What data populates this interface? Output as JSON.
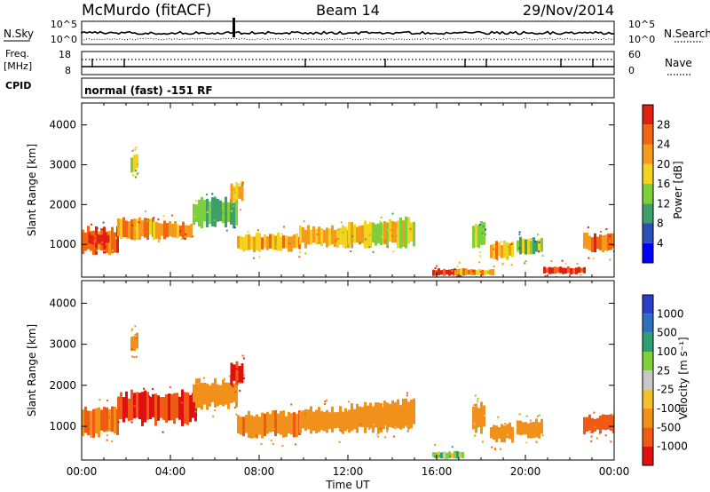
{
  "header": {
    "station": "McMurdo (fitACF)",
    "beam": "Beam 14",
    "date": "29/Nov/2014"
  },
  "noise_panel": {
    "left_label": "N.Sky",
    "right_label": "N.Search",
    "left_ticks": [
      "10^5",
      "10^0"
    ],
    "right_ticks": [
      "10^5",
      "10^0"
    ]
  },
  "freq_panel": {
    "left_label_line1": "Freq.",
    "left_label_line2": "[MHz]",
    "right_label": "Nave",
    "left_ticks": [
      "18",
      "8"
    ],
    "right_ticks": [
      "60",
      "0"
    ]
  },
  "cpid": {
    "label": "CPID",
    "mode_text": "normal (fast) -151 RF"
  },
  "axes": {
    "ylabel": "Slant Range [km]",
    "xlabel": "Time UT",
    "y_ticks": [
      "1000",
      "2000",
      "3000",
      "4000"
    ],
    "x_ticks": [
      "00:00",
      "04:00",
      "08:00",
      "12:00",
      "16:00",
      "20:00",
      "00:00"
    ]
  },
  "power_colorbar": {
    "label": "Power [dB]",
    "ticks": [
      "4",
      "8",
      "12",
      "16",
      "20",
      "24",
      "28"
    ],
    "colors": [
      "#0000ff",
      "#2a4fb8",
      "#3f9f6a",
      "#7ecf3c",
      "#f2d31e",
      "#f59a1a",
      "#f26514",
      "#e02010"
    ]
  },
  "velocity_colorbar": {
    "label": "Velocity [m s⁻¹]",
    "ticks": [
      "1000",
      "500",
      "100",
      "25",
      "-25",
      "-100",
      "-500",
      "-1000"
    ],
    "colors": [
      "#2a3fc8",
      "#2f6fbf",
      "#2e9f72",
      "#7fd03a",
      "#c8c8c8",
      "#f2c12e",
      "#f2901c",
      "#ef5a14",
      "#e01010"
    ]
  },
  "chart_data": [
    {
      "type": "heatmap",
      "title": "Power",
      "xlabel": "Time UT",
      "ylabel": "Slant Range [km]",
      "xlim": [
        0,
        24
      ],
      "ylim": [
        180,
        4550
      ],
      "colorbar": "Power [dB]",
      "clim": [
        0,
        30
      ],
      "grid": false,
      "regions": [
        {
          "t": [
            0.0,
            1.6
          ],
          "r": [
            700,
            1500
          ],
          "value": 24
        },
        {
          "t": [
            0.3,
            1.2
          ],
          "r": [
            1000,
            1300
          ],
          "value": 28
        },
        {
          "t": [
            1.6,
            3.2
          ],
          "r": [
            1100,
            1700
          ],
          "value": 20
        },
        {
          "t": [
            2.2,
            2.5
          ],
          "r": [
            2800,
            3300
          ],
          "value": 14
        },
        {
          "t": [
            3.2,
            5.0
          ],
          "r": [
            1100,
            1600
          ],
          "value": 22
        },
        {
          "t": [
            5.0,
            7.0
          ],
          "r": [
            1400,
            2200
          ],
          "value": 12
        },
        {
          "t": [
            6.7,
            7.3
          ],
          "r": [
            2000,
            2600
          ],
          "value": 18
        },
        {
          "t": [
            7.0,
            9.8
          ],
          "r": [
            800,
            1300
          ],
          "value": 20
        },
        {
          "t": [
            9.8,
            12.0
          ],
          "r": [
            900,
            1500
          ],
          "value": 18
        },
        {
          "t": [
            12.0,
            13.6
          ],
          "r": [
            900,
            1600
          ],
          "value": 16
        },
        {
          "t": [
            13.6,
            15.0
          ],
          "r": [
            900,
            1700
          ],
          "value": 18
        },
        {
          "t": [
            15.8,
            17.2
          ],
          "r": [
            200,
            400
          ],
          "value": 28
        },
        {
          "t": [
            16.8,
            18.6
          ],
          "r": [
            200,
            400
          ],
          "value": 20
        },
        {
          "t": [
            17.6,
            18.2
          ],
          "r": [
            800,
            1600
          ],
          "value": 14
        },
        {
          "t": [
            18.4,
            19.4
          ],
          "r": [
            600,
            1100
          ],
          "value": 20
        },
        {
          "t": [
            19.6,
            20.8
          ],
          "r": [
            700,
            1200
          ],
          "value": 12
        },
        {
          "t": [
            20.8,
            22.6
          ],
          "r": [
            250,
            450
          ],
          "value": 26
        },
        {
          "t": [
            22.6,
            24.0
          ],
          "r": [
            800,
            1300
          ],
          "value": 24
        }
      ]
    },
    {
      "type": "heatmap",
      "title": "Velocity",
      "xlabel": "Time UT",
      "ylabel": "Slant Range [km]",
      "xlim": [
        0,
        24
      ],
      "ylim": [
        180,
        4550
      ],
      "colorbar": "Velocity [m s⁻¹]",
      "clim": [
        -1000,
        1000
      ],
      "grid": false,
      "regions": [
        {
          "t": [
            0.0,
            1.6
          ],
          "r": [
            700,
            1500
          ],
          "value": -500
        },
        {
          "t": [
            1.6,
            5.2
          ],
          "r": [
            1000,
            1900
          ],
          "value": -1000
        },
        {
          "t": [
            2.2,
            2.5
          ],
          "r": [
            2800,
            3300
          ],
          "value": -300
        },
        {
          "t": [
            5.0,
            7.0
          ],
          "r": [
            1400,
            2200
          ],
          "value": -300
        },
        {
          "t": [
            6.7,
            7.3
          ],
          "r": [
            2000,
            2600
          ],
          "value": -1000
        },
        {
          "t": [
            7.0,
            9.8
          ],
          "r": [
            700,
            1400
          ],
          "value": -400
        },
        {
          "t": [
            9.8,
            12.0
          ],
          "r": [
            800,
            1500
          ],
          "value": -300
        },
        {
          "t": [
            12.0,
            13.6
          ],
          "r": [
            800,
            1600
          ],
          "value": -300
        },
        {
          "t": [
            13.6,
            15.0
          ],
          "r": [
            900,
            1700
          ],
          "value": -300
        },
        {
          "t": [
            15.8,
            17.2
          ],
          "r": [
            200,
            400
          ],
          "value": 50
        },
        {
          "t": [
            17.6,
            18.2
          ],
          "r": [
            800,
            1600
          ],
          "value": -200
        },
        {
          "t": [
            18.4,
            19.4
          ],
          "r": [
            600,
            1100
          ],
          "value": -300
        },
        {
          "t": [
            19.6,
            20.8
          ],
          "r": [
            700,
            1200
          ],
          "value": -200
        },
        {
          "t": [
            22.6,
            24.0
          ],
          "r": [
            800,
            1300
          ],
          "value": -700
        }
      ]
    }
  ]
}
